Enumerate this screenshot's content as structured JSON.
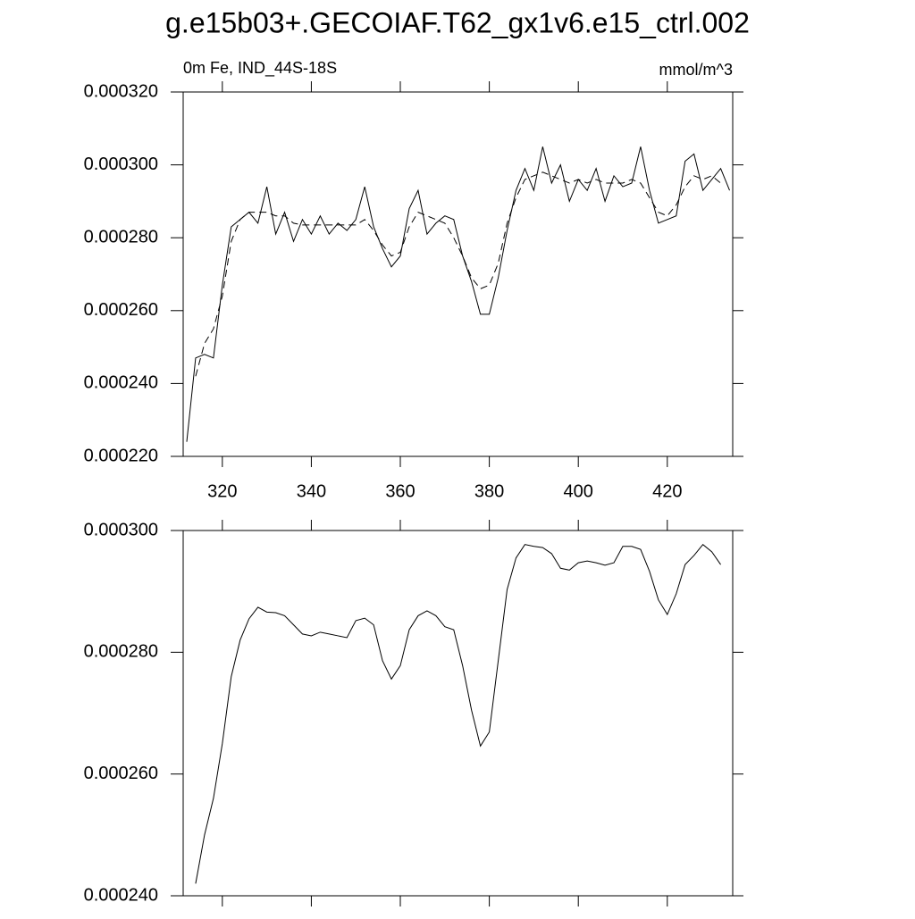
{
  "title": "g.e15b03+.GECOIAF.T62_gx1v6.e15_ctrl.002",
  "chart_data": [
    {
      "type": "line",
      "subtitle": "0m Fe, IND_44S-18S",
      "units": "mmol/m^3",
      "x": [
        312,
        314,
        316,
        318,
        320,
        322,
        324,
        326,
        328,
        330,
        332,
        334,
        336,
        338,
        340,
        342,
        344,
        346,
        348,
        350,
        352,
        354,
        356,
        358,
        360,
        362,
        364,
        366,
        368,
        370,
        372,
        374,
        376,
        378,
        380,
        382,
        384,
        386,
        388,
        390,
        392,
        394,
        396,
        398,
        400,
        402,
        404,
        406,
        408,
        410,
        412,
        414,
        416,
        418,
        420,
        422,
        424,
        426,
        428,
        430,
        432,
        434
      ],
      "series": [
        {
          "color": "#000000",
          "line_style": "solid",
          "values": [
            0.000224,
            0.000247,
            0.000248,
            0.000247,
            0.000267,
            0.000283,
            0.000285,
            0.000287,
            0.000284,
            0.000294,
            0.000281,
            0.000287,
            0.000279,
            0.000285,
            0.000281,
            0.000286,
            0.000281,
            0.000284,
            0.000282,
            0.000285,
            0.000294,
            0.000283,
            0.000277,
            0.000272,
            0.000275,
            0.000288,
            0.000293,
            0.000281,
            0.000284,
            0.000286,
            0.000285,
            0.000275,
            0.000268,
            0.000259,
            0.000259,
            0.000269,
            0.000282,
            0.000293,
            0.000299,
            0.000293,
            0.000305,
            0.000295,
            0.0003,
            0.00029,
            0.000296,
            0.000293,
            0.000299,
            0.00029,
            0.000297,
            0.000294,
            0.000295,
            0.000305,
            0.000293,
            0.000284,
            0.000285,
            0.000286,
            0.000301,
            0.000303,
            0.000293,
            0.000296,
            0.000299,
            0.000293
          ]
        },
        {
          "color": "#000000",
          "line_style": "dashed",
          "values": [
            null,
            0.000242,
            0.000251,
            0.000255,
            0.000264,
            0.000279,
            0.000285,
            0.000287,
            0.000287,
            0.000287,
            0.000286,
            0.000286,
            0.000284,
            0.0002835,
            0.0002835,
            0.0002835,
            0.0002835,
            0.0002835,
            0.0002835,
            0.0002835,
            0.000285,
            0.000282,
            0.000278,
            0.000275,
            0.000276,
            0.000283,
            0.000287,
            0.000286,
            0.000285,
            0.000284,
            0.00028,
            0.000275,
            0.000269,
            0.000266,
            0.000267,
            0.000273,
            0.000284,
            0.000291,
            0.000296,
            0.000297,
            0.000298,
            0.000297,
            0.000296,
            0.000295,
            0.000296,
            0.000295,
            0.000296,
            0.000295,
            0.000295,
            0.000295,
            0.000296,
            0.000295,
            0.000291,
            0.000287,
            0.000286,
            0.000289,
            0.000294,
            0.000297,
            0.000296,
            0.000297,
            0.000295,
            null
          ]
        }
      ],
      "xlim": [
        311.2,
        434.7
      ],
      "xticks": [
        320,
        340,
        360,
        380,
        400,
        420
      ],
      "ylim": [
        0.00022,
        0.00032
      ],
      "yticks": [
        {
          "value": 0.00022,
          "label": "0.000220"
        },
        {
          "value": 0.00024,
          "label": "0.000240"
        },
        {
          "value": 0.00026,
          "label": "0.000260"
        },
        {
          "value": 0.00028,
          "label": "0.000280"
        },
        {
          "value": 0.0003,
          "label": "0.000300"
        },
        {
          "value": 0.00032,
          "label": "0.000320"
        }
      ]
    },
    {
      "type": "line",
      "x": [
        312,
        314,
        316,
        318,
        320,
        322,
        324,
        326,
        328,
        330,
        332,
        334,
        336,
        338,
        340,
        342,
        344,
        346,
        348,
        350,
        352,
        354,
        356,
        358,
        360,
        362,
        364,
        366,
        368,
        370,
        372,
        374,
        376,
        378,
        380,
        382,
        384,
        386,
        388,
        390,
        392,
        394,
        396,
        398,
        400,
        402,
        404,
        406,
        408,
        410,
        412,
        414,
        416,
        418,
        420,
        422,
        424,
        426,
        428,
        430,
        432,
        434
      ],
      "series": [
        {
          "color": "#000000",
          "line_style": "solid",
          "values": [
            null,
            0.000242,
            0.00025,
            0.000256,
            0.000265,
            0.000276,
            0.000282,
            0.0002855,
            0.0002874,
            0.0002866,
            0.0002865,
            0.000286,
            0.0002845,
            0.000283,
            0.0002827,
            0.0002833,
            0.000283,
            0.0002827,
            0.0002824,
            0.0002852,
            0.0002856,
            0.0002845,
            0.0002786,
            0.0002756,
            0.0002778,
            0.0002837,
            0.000286,
            0.0002868,
            0.000286,
            0.0002842,
            0.0002837,
            0.0002778,
            0.0002705,
            0.0002646,
            0.0002669,
            0.0002786,
            0.0002903,
            0.0002955,
            0.0002977,
            0.0002974,
            0.0002972,
            0.0002962,
            0.0002938,
            0.0002935,
            0.0002947,
            0.000295,
            0.0002947,
            0.0002943,
            0.0002947,
            0.0002974,
            0.0002974,
            0.0002969,
            0.0002933,
            0.0002886,
            0.0002862,
            0.0002896,
            0.0002944,
            0.0002959,
            0.0002977,
            0.0002965,
            0.0002944,
            null
          ]
        }
      ],
      "xlim": [
        311.2,
        434.7
      ],
      "xticks": [
        320,
        340,
        360,
        380,
        400,
        420
      ],
      "ylim": [
        0.00024,
        0.0003
      ],
      "yticks": [
        {
          "value": 0.00024,
          "label": "0.000240"
        },
        {
          "value": 0.00026,
          "label": "0.000260"
        },
        {
          "value": 0.00028,
          "label": "0.000280"
        },
        {
          "value": 0.0003,
          "label": "0.000300"
        }
      ]
    }
  ]
}
